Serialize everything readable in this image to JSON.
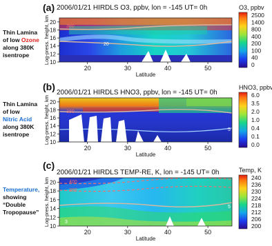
{
  "panels": [
    {
      "letter": "(a)",
      "title": "2006/01/21 HIRDLS O3, ppbv, lon = -145 UT= 0h",
      "note": [
        "Thin Lamina",
        "of low ",
        "Ozone",
        " along 380K",
        "isentrope"
      ],
      "colorbar_label": "O3, ppbv",
      "colorbar_ticks": [
        "2500",
        "1400",
        "800",
        "400",
        "200",
        "100",
        "40",
        "0"
      ],
      "contour_labels": [
        "380",
        "20"
      ]
    },
    {
      "letter": "(b)",
      "title": "2006/01/21 HIRDLS HNO3, ppbv, lon = -145 UT= 0h",
      "note": [
        "Thin Lamina",
        "of low",
        "Nitric Acid",
        "along 380K",
        "isentrope"
      ],
      "colorbar_label": "HNO3, ppbv",
      "colorbar_ticks": [
        "6.0",
        "3.5",
        "2.0",
        "1.0",
        "0.4",
        "0.1",
        "0.0"
      ],
      "contour_labels": [
        "380",
        "5",
        "2"
      ]
    },
    {
      "letter": "(c)",
      "title": "2006/01/21 HIRDLS TEMP-RE, K, lon = -145 UT= 0h",
      "note": [
        "Temperature,",
        "showing",
        "“Double",
        "Tropopause”"
      ],
      "colorbar_label": "Temp, K",
      "colorbar_ticks": [
        "240",
        "236",
        "230",
        "224",
        "218",
        "212",
        "206",
        "200"
      ],
      "contour_labels": [
        "400",
        "380",
        "5",
        "3"
      ]
    }
  ],
  "chart_data": [
    {
      "type": "heatmap",
      "title": "2006/01/21 HIRDLS O3, ppbv, lon = -145 UT= 0h",
      "xlabel": "Latitude",
      "ylabel": "Log-press. height, km",
      "xlim": [
        13,
        56
      ],
      "ylim": [
        10,
        21
      ],
      "x_ticks": [
        20,
        30,
        40,
        50
      ],
      "y_ticks": [
        10,
        12,
        14,
        16,
        18,
        20
      ],
      "colorbar": {
        "label": "O3, ppbv",
        "ticks": [
          0,
          40,
          100,
          200,
          400,
          800,
          1400,
          2500
        ]
      },
      "annotations": [
        "380",
        "20"
      ]
    },
    {
      "type": "heatmap",
      "title": "2006/01/21 HIRDLS HNO3, ppbv, lon = -145 UT= 0h",
      "xlabel": "Latitude",
      "ylabel": "Log-press. height, km",
      "xlim": [
        13,
        56
      ],
      "ylim": [
        10,
        21
      ],
      "x_ticks": [
        20,
        30,
        40,
        50
      ],
      "y_ticks": [
        10,
        12,
        14,
        16,
        18,
        20
      ],
      "colorbar": {
        "label": "HNO3, ppbv",
        "ticks": [
          0.0,
          0.1,
          0.4,
          1.0,
          2.0,
          3.5,
          6.0
        ]
      },
      "annotations": [
        "380",
        "5",
        "2"
      ]
    },
    {
      "type": "heatmap",
      "title": "2006/01/21 HIRDLS TEMP-RE, K, lon = -145 UT= 0h",
      "xlabel": "Latitude",
      "ylabel": "Log-press. height, km",
      "xlim": [
        13,
        56
      ],
      "ylim": [
        10,
        21
      ],
      "x_ticks": [
        20,
        30,
        40,
        50
      ],
      "y_ticks": [
        10,
        12,
        14,
        16,
        18,
        20
      ],
      "colorbar": {
        "label": "Temp, K",
        "ticks": [
          200,
          206,
          212,
          218,
          224,
          230,
          236,
          240
        ]
      },
      "annotations": [
        "400",
        "380",
        "5",
        "3"
      ]
    }
  ]
}
